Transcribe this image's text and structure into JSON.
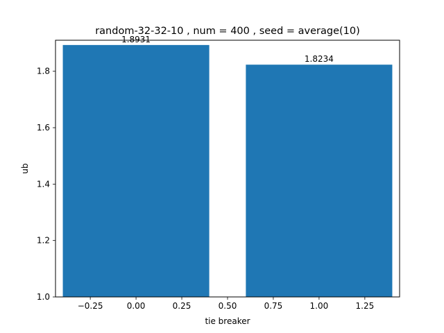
{
  "chart_data": {
    "type": "bar",
    "title": "random-32-32-10 , num = 400 , seed = average(10)",
    "xlabel": "tie breaker",
    "ylabel": "ub",
    "x": [
      0,
      1
    ],
    "values": [
      1.8931,
      1.8234
    ],
    "value_labels": [
      "1.8931",
      "1.8234"
    ],
    "bar_width": 0.8,
    "xlim": [
      -0.44,
      1.44
    ],
    "ylim": [
      1.0,
      1.91
    ],
    "xticks": [
      -0.25,
      0.0,
      0.25,
      0.5,
      0.75,
      1.0,
      1.25
    ],
    "xtick_labels": [
      "−0.25",
      "0.00",
      "0.25",
      "0.50",
      "0.75",
      "1.00",
      "1.25"
    ],
    "yticks": [
      1.0,
      1.2,
      1.4,
      1.6,
      1.8
    ],
    "ytick_labels": [
      "1.0",
      "1.2",
      "1.4",
      "1.6",
      "1.8"
    ],
    "bar_color": "#1f77b4",
    "grid": false,
    "legend": "none"
  }
}
